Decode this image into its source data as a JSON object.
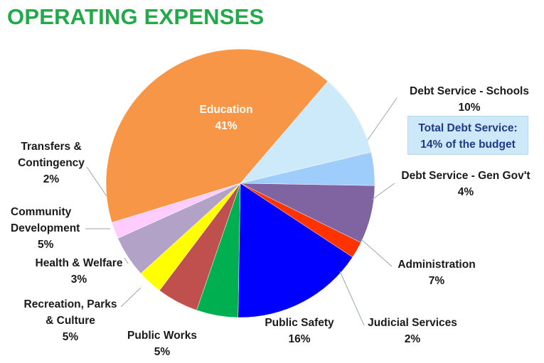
{
  "title": "OPERATING EXPENSES",
  "note": {
    "line1": "Total Debt Service:",
    "line2": "14% of the budget"
  },
  "colors": {
    "title": "#22a94a",
    "education": "#f79646",
    "debt_schools": "#cdeafa",
    "debt_gengov": "#9fcdfb",
    "administration": "#8064a2",
    "judicial": "#ff3300",
    "public_safety": "#0000ff",
    "public_works": "#00b050",
    "recreation": "#c0504d",
    "health": "#ffff00",
    "community": "#b3a2c7",
    "transfers": "#ffccff"
  },
  "chart_data": {
    "type": "pie",
    "title": "OPERATING EXPENSES",
    "slices": [
      {
        "label": "Education",
        "value": 41,
        "display": "41%",
        "color": "#f79646"
      },
      {
        "label": "Debt Service - Schools",
        "value": 10,
        "display": "10%",
        "color": "#cdeafa"
      },
      {
        "label": "Debt Service - Gen Gov't",
        "value": 4,
        "display": "4%",
        "color": "#9fcdfb"
      },
      {
        "label": "Administration",
        "value": 7,
        "display": "7%",
        "color": "#8064a2"
      },
      {
        "label": "Judicial Services",
        "value": 2,
        "display": "2%",
        "color": "#ff3300"
      },
      {
        "label": "Public Safety",
        "value": 16,
        "display": "16%",
        "color": "#0000ff"
      },
      {
        "label": "Public Works",
        "value": 5,
        "display": "5%",
        "color": "#00b050"
      },
      {
        "label": "Recreation, Parks & Culture",
        "value": 5,
        "display": "5%",
        "color": "#c0504d"
      },
      {
        "label": "Health & Welfare",
        "value": 3,
        "display": "3%",
        "color": "#ffff00"
      },
      {
        "label": "Community Development",
        "value": 5,
        "display": "5%",
        "color": "#b3a2c7"
      },
      {
        "label": "Transfers & Contingency",
        "value": 2,
        "display": "2%",
        "color": "#ffccff"
      }
    ]
  },
  "labels": {
    "education": {
      "name": "Education",
      "pct": "41%"
    },
    "debt_schools": {
      "name": "Debt Service - Schools",
      "pct": "10%"
    },
    "debt_gengov": {
      "name": "Debt Service - Gen Gov't",
      "pct": "4%"
    },
    "administration": {
      "name": "Administration",
      "pct": "7%"
    },
    "judicial": {
      "name": "Judicial Services",
      "pct": "2%"
    },
    "public_safety": {
      "name": "Public Safety",
      "pct": "16%"
    },
    "public_works": {
      "name": "Public Works",
      "pct": "5%"
    },
    "recreation": {
      "line1": "Recreation, Parks",
      "line2": "& Culture",
      "pct": "5%"
    },
    "health": {
      "name": "Health & Welfare",
      "pct": "3%"
    },
    "community": {
      "line1": "Community",
      "line2": "Development",
      "pct": "5%"
    },
    "transfers": {
      "line1": "Transfers &",
      "line2": "Contingency",
      "pct": "2%"
    }
  }
}
